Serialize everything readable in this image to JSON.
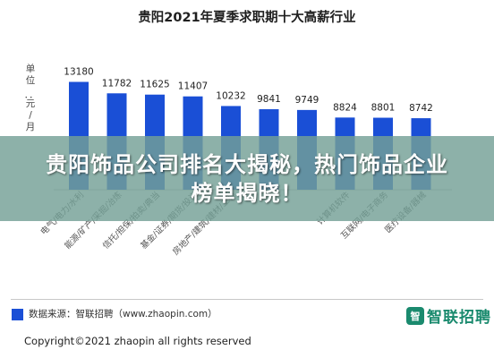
{
  "banner": {
    "text": "贵阳饰品公司排名大揭秘，热门饰品企业榜单揭晓！"
  },
  "chart_data": {
    "type": "bar",
    "title": "贵阳2021年夏季求职期十大高薪行业",
    "ylabel": "单位：元/月",
    "ylim": [
      0,
      14000
    ],
    "grid": false,
    "legend": "none",
    "bar_color": "#1a4fd6",
    "categories": [
      "电气/电力/水利",
      "能源/矿产/采掘/冶炼",
      "信托/担保/拍卖/典当",
      "基金/证券/期货/投资",
      "房地产/建筑/建材/工程",
      "",
      "",
      "计算机软件",
      "互联网/电子商务",
      "医疗设备/器械"
    ],
    "values": [
      13180,
      11782,
      11625,
      11407,
      10232,
      9841,
      9749,
      8824,
      8801,
      8742
    ]
  },
  "footer": {
    "source": "数据来源：智联招聘（www.zhaopin.com）",
    "logo_mark": "智",
    "logo": "智联招聘",
    "copyright": "Copyright©2021 zhaopin all rights reserved"
  }
}
